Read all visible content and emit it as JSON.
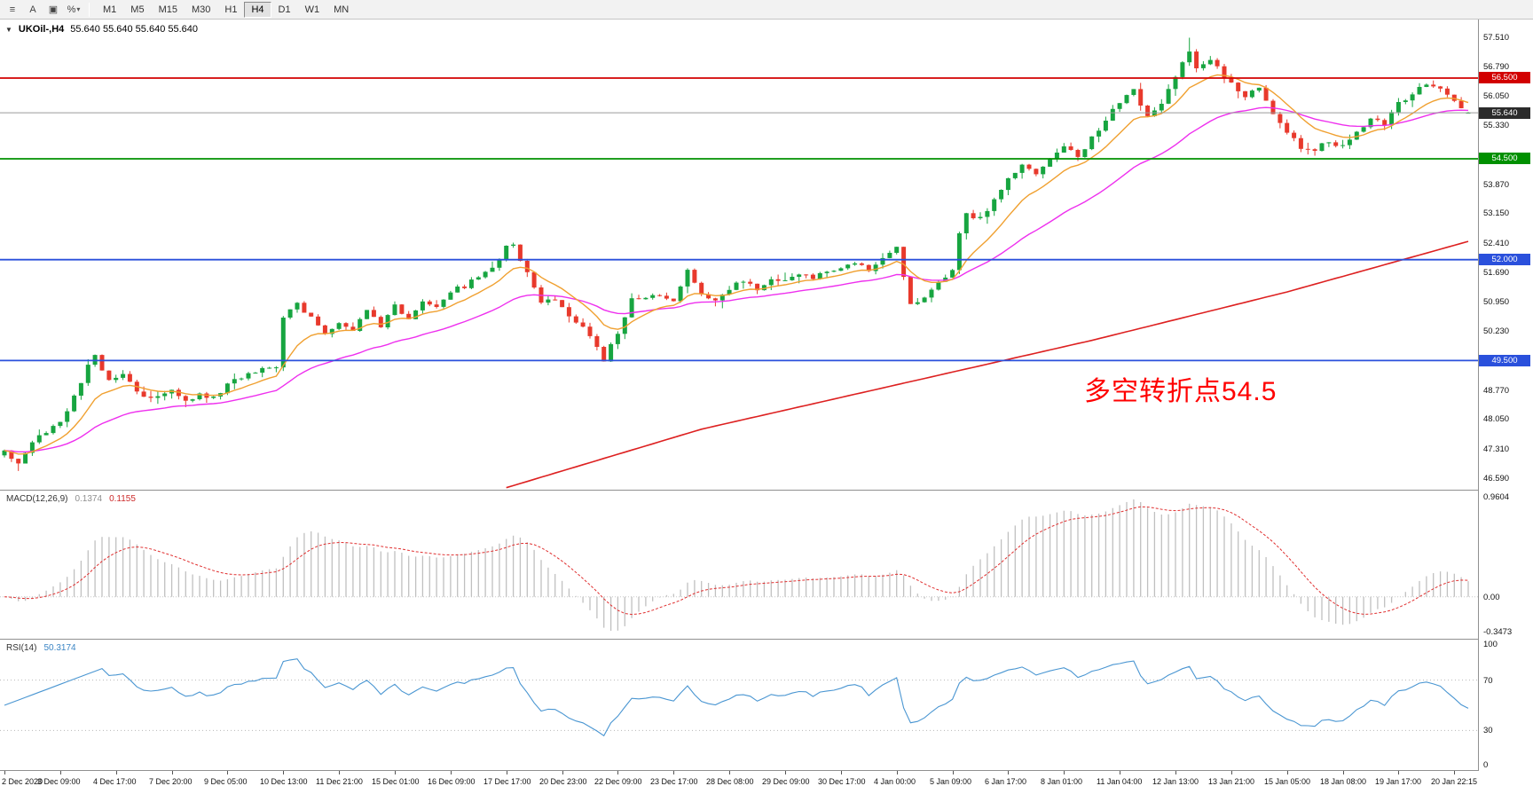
{
  "toolbar": {
    "icons": [
      {
        "name": "menu-icon",
        "glyph": "≡",
        "caret": false
      },
      {
        "name": "cursor-a-icon",
        "glyph": "A",
        "caret": false
      },
      {
        "name": "chart-window-icon",
        "glyph": "▣",
        "caret": false
      },
      {
        "name": "percent-tool-icon",
        "glyph": "%",
        "caret": true
      }
    ],
    "dropdown_caret": "▾",
    "timeframes": [
      "M1",
      "M5",
      "M15",
      "M30",
      "H1",
      "H4",
      "D1",
      "W1",
      "MN"
    ],
    "active_timeframe": "H4"
  },
  "chart": {
    "collapse_icon": "▼",
    "title": "UKOil-,H4",
    "ohlc": "55.640 55.640 55.640 55.640",
    "annotation": "多空转折点54.5",
    "annotation_color": "#ff0000",
    "price_axis_labels": [
      "57.510",
      "56.790",
      "56.050",
      "55.330",
      "53.870",
      "53.150",
      "52.410",
      "51.690",
      "50.950",
      "50.230",
      "48.770",
      "48.050",
      "47.310",
      "46.590"
    ]
  },
  "chart_data": {
    "type": "candlestick",
    "symbol": "UKOil-",
    "timeframe": "H4",
    "last_price": 55.64,
    "bars": 211,
    "up_color": "#17a540",
    "down_color": "#e8392c",
    "price_range": {
      "min": 46.3,
      "max": 57.95
    },
    "price_waypoints": [
      [
        0,
        47.25
      ],
      [
        2,
        47.0
      ],
      [
        4,
        47.5
      ],
      [
        6,
        47.75
      ],
      [
        8,
        48.0
      ],
      [
        10,
        48.6
      ],
      [
        12,
        49.35
      ],
      [
        13,
        49.6
      ],
      [
        15,
        49.0
      ],
      [
        17,
        49.2
      ],
      [
        19,
        48.75
      ],
      [
        21,
        48.55
      ],
      [
        24,
        48.8
      ],
      [
        26,
        48.5
      ],
      [
        28,
        48.65
      ],
      [
        30,
        48.55
      ],
      [
        32,
        48.9
      ],
      [
        34,
        49.1
      ],
      [
        36,
        49.25
      ],
      [
        39,
        49.3
      ],
      [
        40,
        50.6
      ],
      [
        42,
        50.9
      ],
      [
        44,
        50.55
      ],
      [
        46,
        50.2
      ],
      [
        48,
        50.45
      ],
      [
        50,
        50.25
      ],
      [
        52,
        50.7
      ],
      [
        54,
        50.35
      ],
      [
        56,
        50.85
      ],
      [
        58,
        50.55
      ],
      [
        60,
        51.0
      ],
      [
        62,
        50.85
      ],
      [
        64,
        51.2
      ],
      [
        66,
        51.35
      ],
      [
        68,
        51.55
      ],
      [
        70,
        51.8
      ],
      [
        72,
        52.3
      ],
      [
        73,
        52.35
      ],
      [
        75,
        51.7
      ],
      [
        77,
        50.9
      ],
      [
        79,
        51.05
      ],
      [
        81,
        50.65
      ],
      [
        83,
        50.35
      ],
      [
        85,
        49.85
      ],
      [
        86,
        49.5
      ],
      [
        88,
        50.2
      ],
      [
        90,
        51.0
      ],
      [
        93,
        51.15
      ],
      [
        96,
        50.95
      ],
      [
        98,
        51.75
      ],
      [
        100,
        51.2
      ],
      [
        102,
        51.0
      ],
      [
        104,
        51.3
      ],
      [
        106,
        51.5
      ],
      [
        108,
        51.3
      ],
      [
        110,
        51.55
      ],
      [
        112,
        51.45
      ],
      [
        114,
        51.65
      ],
      [
        116,
        51.55
      ],
      [
        118,
        51.7
      ],
      [
        120,
        51.8
      ],
      [
        122,
        51.9
      ],
      [
        124,
        51.75
      ],
      [
        126,
        52.0
      ],
      [
        128,
        52.3
      ],
      [
        129,
        51.6
      ],
      [
        130,
        50.85
      ],
      [
        132,
        51.1
      ],
      [
        134,
        51.4
      ],
      [
        136,
        51.8
      ],
      [
        137,
        52.6
      ],
      [
        138,
        53.1
      ],
      [
        140,
        53.0
      ],
      [
        142,
        53.5
      ],
      [
        144,
        54.0
      ],
      [
        146,
        54.35
      ],
      [
        148,
        54.1
      ],
      [
        150,
        54.5
      ],
      [
        152,
        54.8
      ],
      [
        154,
        54.55
      ],
      [
        156,
        55.0
      ],
      [
        158,
        55.5
      ],
      [
        160,
        55.9
      ],
      [
        162,
        56.2
      ],
      [
        164,
        55.5
      ],
      [
        166,
        55.9
      ],
      [
        168,
        56.5
      ],
      [
        170,
        57.2
      ],
      [
        171,
        56.75
      ],
      [
        173,
        56.95
      ],
      [
        176,
        56.35
      ],
      [
        178,
        56.05
      ],
      [
        180,
        56.25
      ],
      [
        182,
        55.65
      ],
      [
        184,
        55.15
      ],
      [
        186,
        54.8
      ],
      [
        188,
        54.7
      ],
      [
        190,
        54.95
      ],
      [
        192,
        54.8
      ],
      [
        194,
        55.15
      ],
      [
        196,
        55.5
      ],
      [
        198,
        55.35
      ],
      [
        200,
        55.85
      ],
      [
        202,
        56.15
      ],
      [
        204,
        56.3
      ],
      [
        206,
        56.2
      ],
      [
        208,
        55.95
      ],
      [
        210,
        55.64
      ]
    ],
    "ma_fast": {
      "period": 10,
      "color": "#f0a030"
    },
    "ma_mid": {
      "period": 30,
      "color": "#ee30ee"
    },
    "ma_slow": {
      "color": "#dd2020",
      "waypoints": [
        [
          72,
          46.35
        ],
        [
          100,
          47.8
        ],
        [
          128,
          48.9
        ],
        [
          156,
          50.0
        ],
        [
          184,
          51.2
        ],
        [
          211,
          52.5
        ]
      ]
    },
    "levels": [
      {
        "value": 56.5,
        "label": "56.500",
        "color": "#d20000",
        "badge": "#d20000",
        "width": 1.8,
        "type": "resistance"
      },
      {
        "value": 55.64,
        "label": "55.640",
        "color": "#9a9a9a",
        "badge": "#2b2b2b",
        "width": 1,
        "type": "current-price"
      },
      {
        "value": 54.5,
        "label": "54.500",
        "color": "#009000",
        "badge": "#009000",
        "width": 1.8,
        "type": "support"
      },
      {
        "value": 52.0,
        "label": "52.000",
        "color": "#2a50dc",
        "badge": "#2a50dc",
        "width": 1.8,
        "type": "support-mid"
      },
      {
        "value": 49.5,
        "label": "49.500",
        "color": "#2a50dc",
        "badge": "#2a50dc",
        "width": 1.8,
        "type": "support-low"
      }
    ]
  },
  "macd": {
    "label": "MACD(12,26,9)",
    "value_main": "0.1374",
    "value_signal": "0.1155",
    "axis_labels": [
      "0.9604",
      "0.00",
      "-0.3473"
    ],
    "histogram_color": "#c0c0c0",
    "signal_color": "#e03030"
  },
  "rsi": {
    "label": "RSI(14)",
    "value": "50.3174",
    "axis_labels": [
      "100",
      "70",
      "30",
      "0"
    ],
    "levels": [
      70,
      30
    ],
    "line_color": "#4a96d2"
  },
  "time_axis": {
    "bars_per_label": 8,
    "labels": [
      "2 Dec 2020",
      "3 Dec 09:00",
      "4 Dec 17:00",
      "7 Dec 20:00",
      "9 Dec 05:00",
      "10 Dec 13:00",
      "11 Dec 21:00",
      "15 Dec 01:00",
      "16 Dec 09:00",
      "17 Dec 17:00",
      "20 Dec 23:00",
      "22 Dec 09:00",
      "23 Dec 17:00",
      "28 Dec 08:00",
      "29 Dec 09:00",
      "30 Dec 17:00",
      "4 Jan 00:00",
      "5 Jan 09:00",
      "6 Jan 17:00",
      "8 Jan 01:00",
      "11 Jan 04:00",
      "12 Jan 13:00",
      "13 Jan 21:00",
      "15 Jan 05:00",
      "18 Jan 08:00",
      "19 Jan 17:00",
      "20 Jan 22:15"
    ]
  }
}
